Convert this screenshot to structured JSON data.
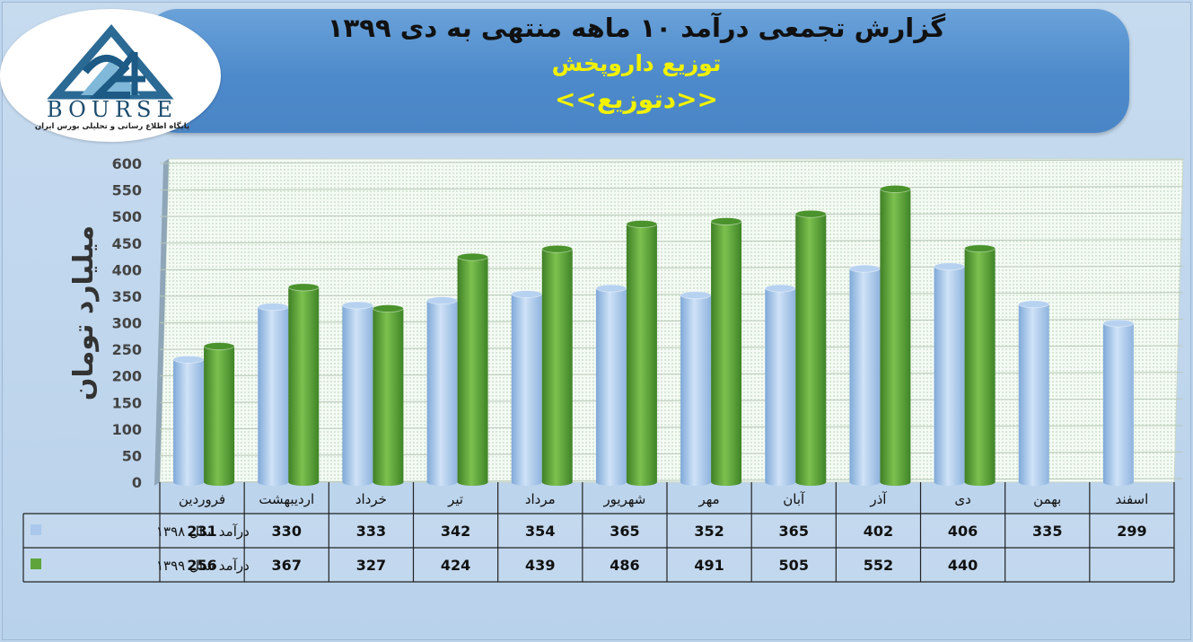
{
  "header": {
    "title": "گزارش تجمعی درآمد ۱۰ ماهه منتهی به دی ۱۳۹۹",
    "subtitle": "توزیع داروپخش",
    "symbol": "<<دتوزیع>>"
  },
  "logo": {
    "word": "BOURSE",
    "tagline": "پایگاه اطلاع رسانی و تحلیلی بورس ایران"
  },
  "colors": {
    "series_1398": "#a9c8ec",
    "series_1399": "#5fa43b",
    "banner": "#4f8bcb",
    "title_yellow": "#f2f200"
  },
  "chart_data": {
    "type": "bar",
    "ylabel": "میلیارد تومان",
    "ylim": [
      0,
      600
    ],
    "yticks": [
      0,
      50,
      100,
      150,
      200,
      250,
      300,
      350,
      400,
      450,
      500,
      550,
      600
    ],
    "categories": [
      "فروردین",
      "اردیبهشت",
      "خرداد",
      "تیر",
      "مرداد",
      "شهریور",
      "مهر",
      "آبان",
      "آذر",
      "دی",
      "بهمن",
      "اسفند"
    ],
    "series": [
      {
        "name": "درآمد سال ۱۳۹۸",
        "values": [
          231,
          330,
          333,
          342,
          354,
          365,
          352,
          365,
          402,
          406,
          335,
          299
        ]
      },
      {
        "name": "درآمد سال ۱۳۹۹",
        "values": [
          256,
          367,
          327,
          424,
          439,
          486,
          491,
          505,
          552,
          440,
          null,
          null
        ]
      }
    ],
    "grid": true,
    "legend": "table-left"
  }
}
